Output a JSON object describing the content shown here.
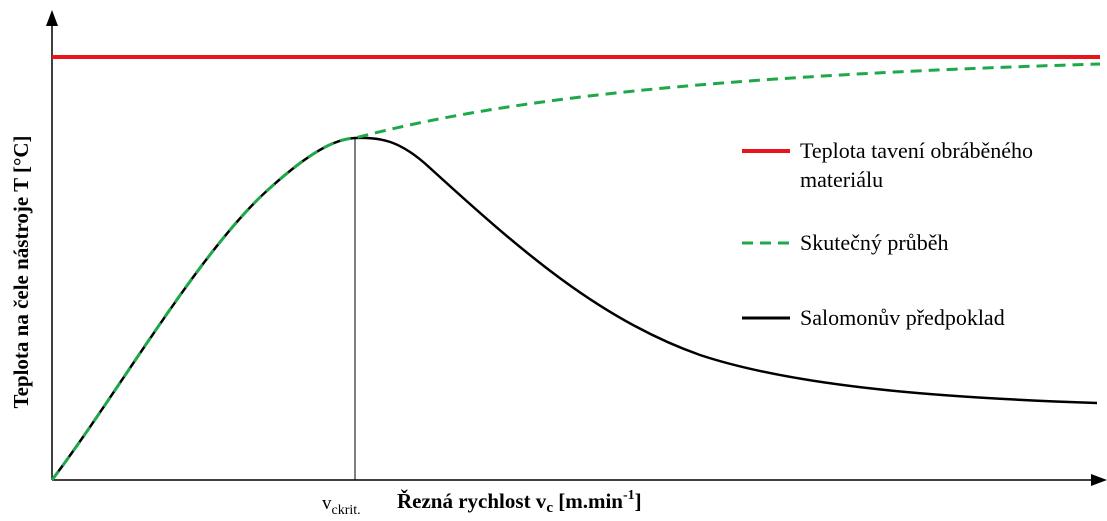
{
  "y_label": "Teplota na čele nástroje T [°C]",
  "x_label": {
    "main": "Řezná rychlost v",
    "sub": "c",
    "unit": " [m.min",
    "sup": "-1",
    "close": "]"
  },
  "critical_label": {
    "main": "v",
    "sub": "ckrit."
  },
  "legend": [
    {
      "lines": [
        "Teplota tavení obráběného",
        "materiálu"
      ]
    },
    {
      "lines": [
        "Skutečný průběh"
      ]
    },
    {
      "lines": [
        "Salomonův předpoklad"
      ]
    }
  ]
}
